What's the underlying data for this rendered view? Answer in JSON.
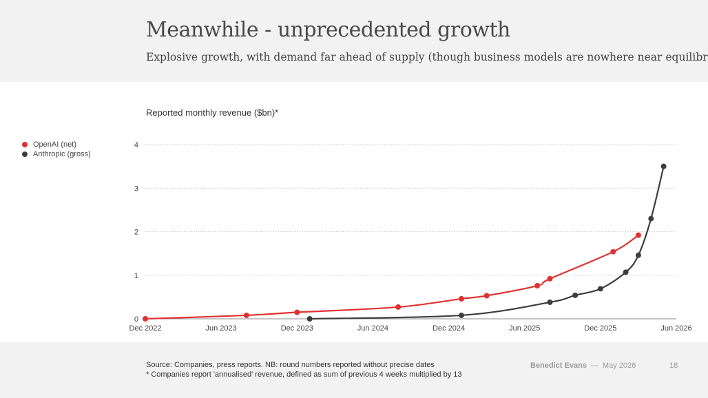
{
  "slide": {
    "title": "Meanwhile - unprecedented growth",
    "subtitle": "Explosive growth, with demand far ahead of supply (though business models are nowhere near equilibrium)",
    "page_number": "18"
  },
  "footer": {
    "source_line": "Source: Companies, press reports. NB: round numbers reported without precise dates",
    "note_line": "* Companies report 'annualised' revenue, defined as sum of previous 4 weeks multiplied by 13",
    "author": "Benedict Evans",
    "separator": "—",
    "date": "May 2026"
  },
  "colors": {
    "openai": "#e03131",
    "anthropic": "#3d3d3d",
    "grid": "#c8c8c8",
    "axis": "#888888"
  },
  "chart_data": {
    "type": "line",
    "title": "Reported monthly revenue ($bn)*",
    "x_tick_labels": [
      "Dec 2022",
      "Jun 2023",
      "Dec 2023",
      "Jun 2024",
      "Dec 2024",
      "Jun 2025",
      "Dec 2025",
      "Jun 2026"
    ],
    "x_range": [
      "2022-12",
      "2026-06"
    ],
    "y_ticks": [
      0,
      1,
      2,
      3,
      4
    ],
    "ylim": [
      0,
      4
    ],
    "grid": true,
    "legend_position": "left",
    "series": [
      {
        "name": "OpenAI (net)",
        "color": "#e03131",
        "points": [
          {
            "date": "2022-12",
            "value": 0.0
          },
          {
            "date": "2023-08",
            "value": 0.08
          },
          {
            "date": "2023-12",
            "value": 0.15
          },
          {
            "date": "2024-08",
            "value": 0.27
          },
          {
            "date": "2025-01",
            "value": 0.46
          },
          {
            "date": "2025-03",
            "value": 0.53
          },
          {
            "date": "2025-07",
            "value": 0.76
          },
          {
            "date": "2025-08",
            "value": 0.92
          },
          {
            "date": "2026-01",
            "value": 1.54
          },
          {
            "date": "2026-03",
            "value": 1.92
          }
        ]
      },
      {
        "name": "Anthropic (gross)",
        "color": "#3d3d3d",
        "points": [
          {
            "date": "2024-01",
            "value": 0.0
          },
          {
            "date": "2025-01",
            "value": 0.08
          },
          {
            "date": "2025-08",
            "value": 0.38
          },
          {
            "date": "2025-10",
            "value": 0.54
          },
          {
            "date": "2025-12",
            "value": 0.69
          },
          {
            "date": "2026-02",
            "value": 1.07
          },
          {
            "date": "2026-03",
            "value": 1.46
          },
          {
            "date": "2026-04",
            "value": 2.3
          },
          {
            "date": "2026-05",
            "value": 3.5
          }
        ]
      }
    ]
  }
}
